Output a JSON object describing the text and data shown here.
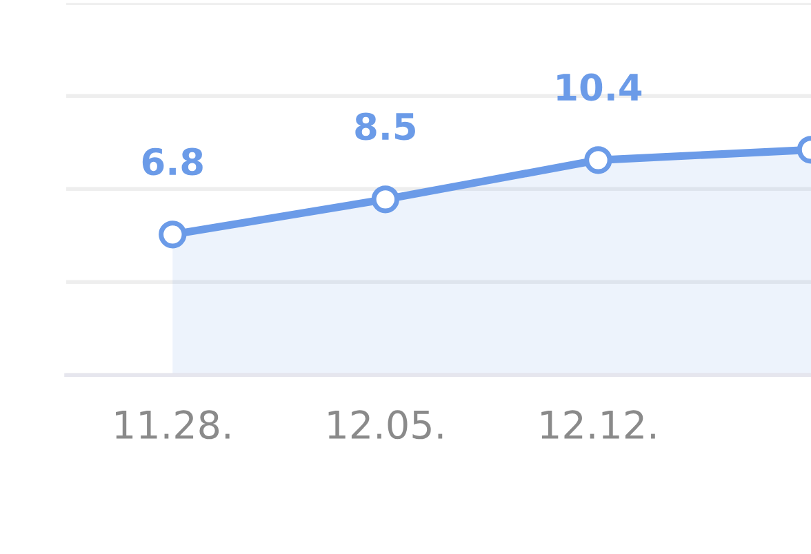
{
  "chart_data": {
    "type": "area",
    "categories": [
      "11.28.",
      "12.05.",
      "12.12.",
      null
    ],
    "series": [
      {
        "color": "#6b9be8",
        "values": [
          6.8,
          8.5,
          10.4,
          10.9
        ],
        "value_labels": [
          "6.8",
          "8.5",
          "10.4",
          null
        ]
      }
    ],
    "ylim": [
      0,
      18
    ],
    "yticks": [
      {
        "value": 0,
        "label": null
      },
      {
        "value": 4.5,
        "label": null
      },
      {
        "value": 9,
        "label": null
      },
      {
        "value": 13.5,
        "label": null
      },
      {
        "value": 18,
        "label": null
      }
    ],
    "grid": "y",
    "marker": "circle",
    "tick_labels": "x"
  }
}
